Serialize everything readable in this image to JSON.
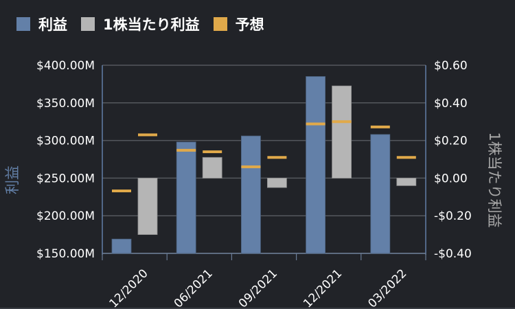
{
  "legend": [
    {
      "label": "利益",
      "color": "#6380a8"
    },
    {
      "label": "1株当たり利益",
      "color": "#b5b5b5"
    },
    {
      "label": "予想",
      "color": "#e0a94a"
    }
  ],
  "chart_data": {
    "type": "bar",
    "categories": [
      "12/2020",
      "06/2021",
      "09/2021",
      "12/2021",
      "03/2022"
    ],
    "series": [
      {
        "name": "利益",
        "axis": "left",
        "color": "#6380a8",
        "values": [
          169,
          298,
          306,
          385,
          308
        ]
      },
      {
        "name": "1株当たり利益",
        "axis": "right",
        "color": "#b5b5b5",
        "values": [
          -0.3,
          0.11,
          -0.05,
          0.49,
          -0.04
        ]
      },
      {
        "name": "予想 (利益)",
        "axis": "left",
        "color": "#e0a94a",
        "values": [
          233,
          287,
          265,
          322,
          318
        ]
      },
      {
        "name": "予想 (1株当たり利益)",
        "axis": "right",
        "color": "#e0a94a",
        "values": [
          0.23,
          0.14,
          0.11,
          0.3,
          0.11
        ]
      }
    ],
    "left_axis": {
      "label": "利益",
      "ticks": [
        "$400.00M",
        "$350.00M",
        "$300.00M",
        "$250.00M",
        "$200.00M",
        "$150.00M"
      ],
      "range": [
        150,
        400
      ],
      "unit": "$M"
    },
    "right_axis": {
      "label": "1株当たり利益",
      "ticks": [
        "$0.60",
        "$0.40",
        "$0.20",
        "$0.00",
        "-$0.20",
        "-$0.40"
      ],
      "range": [
        -0.4,
        0.6
      ]
    },
    "grid": true,
    "legend_position": "top-left"
  }
}
